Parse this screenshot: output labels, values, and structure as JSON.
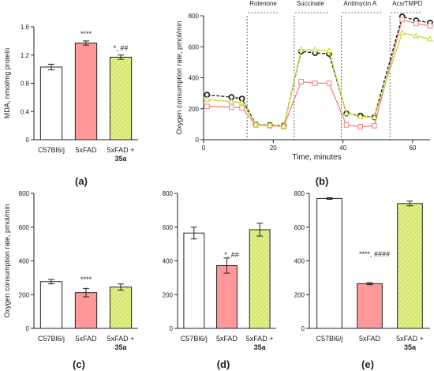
{
  "figure": {
    "panels": {
      "a": {
        "tag": "(a)"
      },
      "b": {
        "tag": "(b)"
      },
      "c": {
        "tag": "(c)"
      },
      "d": {
        "tag": "(d)"
      },
      "e": {
        "tag": "(e)"
      }
    }
  },
  "chart_data": [
    {
      "id": "a",
      "type": "bar",
      "ylabel": "MDA, nmol/mg protein",
      "ylim": [
        0,
        1.6
      ],
      "yticks": [
        0,
        0.4,
        0.8,
        1.2,
        1.6
      ],
      "categories": [
        "C57Bl6/j",
        "5xFAD",
        "5xFAD + 35a"
      ],
      "values": [
        1.03,
        1.37,
        1.17
      ],
      "errors": [
        0.04,
        0.03,
        0.03
      ],
      "annotations": [
        "",
        "****",
        "*, ##"
      ],
      "colors": [
        "#ffffff",
        "#ff9999",
        "#e2ef8a"
      ],
      "patterns": [
        "none",
        "none",
        "hatch"
      ]
    },
    {
      "id": "b",
      "type": "line",
      "xlabel": "Time, minutes",
      "ylabel": "Oxygen consumption rate, pmol/min",
      "xlim": [
        0,
        65
      ],
      "ylim": [
        0,
        800
      ],
      "xticks": [
        0,
        20,
        40,
        60
      ],
      "yticks": [
        0,
        200,
        400,
        600,
        800
      ],
      "injections": [
        {
          "label": "Rotenone",
          "x": 12.5
        },
        {
          "label": "Succinate",
          "x": 26
        },
        {
          "label": "Antimycin A",
          "x": 39.5
        },
        {
          "label": "Acs/TMPD",
          "x": 53.5
        }
      ],
      "x": [
        1,
        8,
        11,
        15,
        19,
        23,
        28,
        32,
        36,
        41,
        45,
        49,
        57,
        61,
        65
      ],
      "series": [
        {
          "name": "C57Bl6/j",
          "color": "#111111",
          "marker": "circle",
          "dashed": true,
          "values": [
            290,
            275,
            265,
            100,
            95,
            90,
            570,
            560,
            555,
            170,
            155,
            145,
            795,
            770,
            755
          ]
        },
        {
          "name": "5xFAD",
          "color": "#f08080",
          "marker": "square",
          "dashed": false,
          "values": [
            215,
            210,
            205,
            95,
            90,
            85,
            375,
            365,
            365,
            95,
            85,
            90,
            775,
            750,
            735
          ]
        },
        {
          "name": "5xFAD + 35a",
          "color": "#c8d92e",
          "marker": "triangle",
          "dashed": false,
          "values": [
            260,
            245,
            240,
            100,
            93,
            88,
            580,
            580,
            575,
            170,
            150,
            145,
            690,
            670,
            650
          ]
        }
      ]
    },
    {
      "id": "c",
      "type": "bar",
      "ylabel": "Oxygen consumption rate, pmol/min",
      "ylim": [
        0,
        800
      ],
      "yticks": [
        0,
        200,
        400,
        600,
        800
      ],
      "categories": [
        "C57Bl6/j",
        "5xFAD",
        "5xFAD + 35a"
      ],
      "values": [
        277,
        212,
        245
      ],
      "errors": [
        13,
        25,
        18
      ],
      "annotations": [
        "",
        "****",
        ""
      ],
      "colors": [
        "#ffffff",
        "#ff9999",
        "#e2ef8a"
      ],
      "patterns": [
        "none",
        "none",
        "hatch"
      ]
    },
    {
      "id": "d",
      "type": "bar",
      "ylabel": "",
      "ylim": [
        0,
        800
      ],
      "yticks": [
        0,
        200,
        400,
        600,
        800
      ],
      "categories": [
        "C57Bl6/j",
        "5xFAD",
        "5xFAD + 35a"
      ],
      "values": [
        565,
        372,
        585
      ],
      "errors": [
        35,
        45,
        38
      ],
      "annotations": [
        "",
        "*, ##",
        ""
      ],
      "colors": [
        "#ffffff",
        "#ff9999",
        "#e2ef8a"
      ],
      "patterns": [
        "none",
        "none",
        "hatch"
      ]
    },
    {
      "id": "e",
      "type": "bar",
      "ylabel": "",
      "ylim": [
        0,
        800
      ],
      "yticks": [
        0,
        200,
        400,
        600,
        800
      ],
      "categories": [
        "C57Bl6/j",
        "5xFAD",
        "5xFAD + 35a"
      ],
      "values": [
        770,
        265,
        740
      ],
      "errors": [
        5,
        6,
        14
      ],
      "annotations": [
        "",
        "****, ####",
        ""
      ],
      "colors": [
        "#ffffff",
        "#ff9999",
        "#e2ef8a"
      ],
      "patterns": [
        "none",
        "none",
        "hatch"
      ]
    }
  ]
}
